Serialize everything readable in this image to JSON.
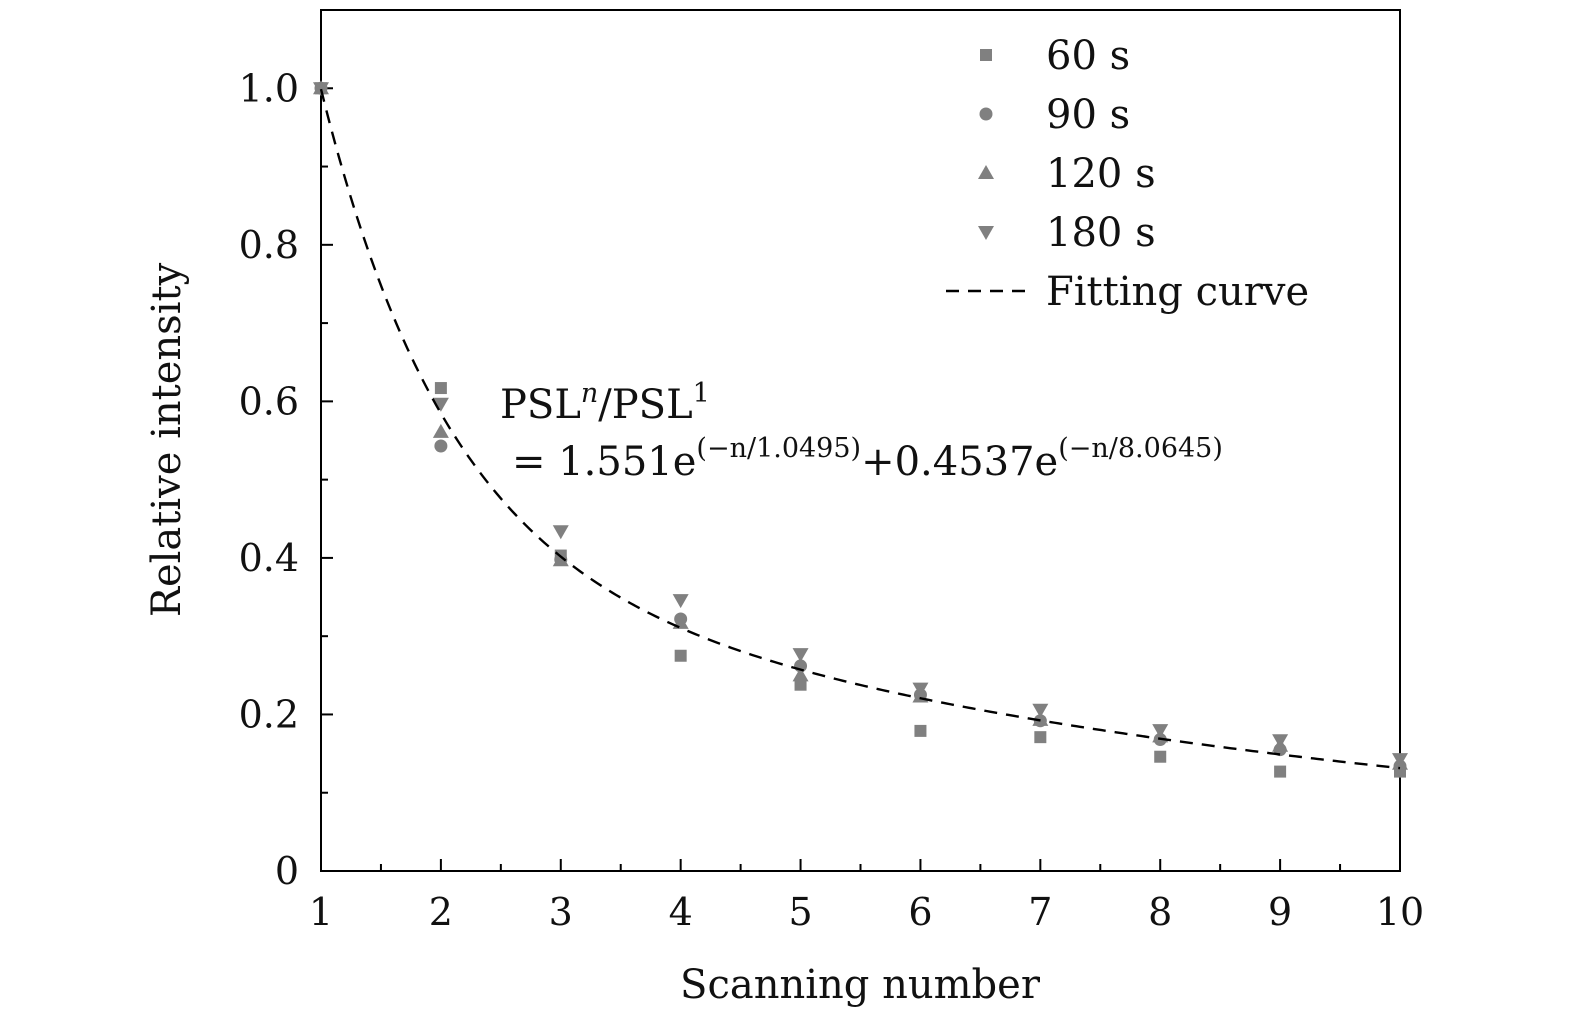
{
  "chart_data": {
    "type": "scatter",
    "title": "",
    "xlabel": "Scanning number",
    "ylabel": "Relative intensity",
    "xlim": [
      1,
      10
    ],
    "ylim": [
      0,
      1.1
    ],
    "xticks": [
      1,
      2,
      3,
      4,
      5,
      6,
      7,
      8,
      9,
      10
    ],
    "xtick_labels": [
      "1",
      "2",
      "3",
      "4",
      "5",
      "6",
      "7",
      "8",
      "9",
      "10"
    ],
    "yticks": [
      0,
      0.2,
      0.4,
      0.6,
      0.8,
      1.0
    ],
    "ytick_labels": [
      "0",
      "0.2",
      "0.4",
      "0.6",
      "0.8",
      "1.0"
    ],
    "grid": false,
    "legend_position": "top-right",
    "marker_color": "#808080",
    "series": [
      {
        "name": "60 s",
        "marker": "square",
        "x": [
          1,
          2,
          3,
          4,
          5,
          6,
          7,
          8,
          9,
          10
        ],
        "y": [
          1.0,
          0.617,
          0.403,
          0.275,
          0.238,
          0.179,
          0.171,
          0.146,
          0.127,
          0.127
        ]
      },
      {
        "name": "90 s",
        "marker": "circle",
        "x": [
          1,
          2,
          3,
          4,
          5,
          6,
          7,
          8,
          9,
          10
        ],
        "y": [
          1.0,
          0.543,
          0.398,
          0.322,
          0.262,
          0.225,
          0.192,
          0.168,
          0.155,
          0.134
        ]
      },
      {
        "name": "120 s",
        "marker": "triangle-up",
        "x": [
          1,
          2,
          3,
          4,
          5,
          6,
          7,
          8,
          9,
          10
        ],
        "y": [
          1.0,
          0.561,
          0.397,
          0.317,
          0.25,
          0.223,
          0.193,
          0.172,
          0.16,
          0.137
        ]
      },
      {
        "name": "180 s",
        "marker": "triangle-down",
        "x": [
          1,
          2,
          3,
          4,
          5,
          6,
          7,
          8,
          9,
          10
        ],
        "y": [
          1.0,
          0.597,
          0.434,
          0.346,
          0.277,
          0.233,
          0.206,
          0.18,
          0.167,
          0.143
        ]
      }
    ],
    "fit": {
      "name": "Fitting curve",
      "style": "dashed",
      "a1": 1.551,
      "t1": 1.0495,
      "a2": 0.4537,
      "t2": 8.0645
    },
    "annotation": {
      "line1_base": "PSL",
      "line1_sup": "n",
      "line1_mid": "/PSL",
      "line1_sup2": "1",
      "line2_a": "= 1.551e",
      "line2_sup_a": "(−n/1.0495)",
      "line2_b": "+0.4537e",
      "line2_sup_b": "(−n/8.0645)"
    }
  }
}
